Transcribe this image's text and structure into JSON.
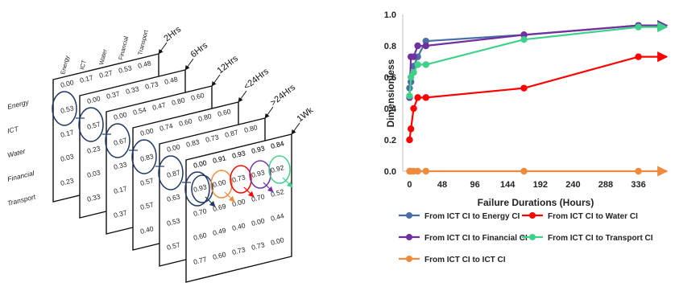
{
  "chart_data": [
    {
      "type": "table",
      "row_labels": [
        "Energy",
        "ICT",
        "Water",
        "Financial",
        "Transport"
      ],
      "column_labels": [
        "Energy",
        "ICT",
        "Water",
        "Financial",
        "Transport"
      ],
      "layers": [
        {
          "label": "2Hrs",
          "first_row": [
            "0.00",
            "0.17",
            "0.27",
            "0.53",
            "0.48"
          ]
        },
        {
          "label": "6Hrs",
          "first_row": [
            "0.00",
            "0.37",
            "0.33",
            "0.73",
            "0.48"
          ]
        },
        {
          "label": "12Hrs",
          "first_row": [
            "0.00",
            "0.54",
            "0.47",
            "0.80",
            "0.60"
          ]
        },
        {
          "label": "<24Hrs",
          "first_row": [
            "0.00",
            "0.74",
            "0.60",
            "0.80",
            "0.60"
          ]
        },
        {
          "label": ">24Hrs",
          "first_row": [
            "0.00",
            "0.83",
            "0.73",
            "0.87",
            "0.80"
          ]
        },
        {
          "label": "1Wk",
          "first_row": [
            "0.00",
            "0.91",
            "0.93",
            "0.93",
            "0.84"
          ]
        }
      ],
      "visible_columns": [
        [
          "0.53",
          "0.17",
          "0.03",
          "0.23"
        ],
        [
          "0.57",
          "0.23",
          "0.03",
          "0.33"
        ],
        [
          "0.67",
          "0.33",
          "0.17",
          "0.37"
        ],
        [
          "0.83",
          "0.57",
          "0.57",
          "0.40"
        ],
        [
          "0.87",
          "0.63",
          "0.53",
          "0.57"
        ]
      ],
      "front_grid": [
        [
          "0.00",
          "0.91",
          "0.93",
          "0.93",
          "0.84"
        ],
        [
          "0.93",
          "0.00",
          "0.73",
          "0.93",
          "0.92"
        ],
        [
          "0.70",
          "0.69",
          "0.00",
          "0.70",
          "0.52"
        ],
        [
          "0.60",
          "0.49",
          "0.40",
          "0.00",
          "0.44"
        ],
        [
          "0.77",
          "0.60",
          "0.73",
          "0.73",
          "0.00"
        ]
      ]
    },
    {
      "type": "line",
      "xlabel": "Failure Durations (Hours)",
      "ylabel": "Dimensionless",
      "x": [
        0,
        2,
        6,
        12,
        24,
        168,
        336
      ],
      "xticks": [
        0,
        48,
        96,
        144,
        192,
        240,
        288,
        336
      ],
      "xlim": [
        -10,
        372
      ],
      "ylim": [
        0,
        1.0
      ],
      "yticks": [
        "0.0",
        "0.2",
        "0.4",
        "0.6",
        "0.8",
        "1.0"
      ],
      "grid": false,
      "legend_position": "bottom",
      "series": [
        {
          "name": "From ICT CI to Energy CI",
          "color": "#4A6FA5",
          "values": [
            0.53,
            0.57,
            0.67,
            0.73,
            0.83,
            0.87,
            0.93
          ]
        },
        {
          "name": "From ICT CI to Water CI",
          "color": "#FF0000",
          "values": [
            0.2,
            0.27,
            0.4,
            0.47,
            0.47,
            0.53,
            0.73
          ]
        },
        {
          "name": "From ICT CI to Financial CI",
          "color": "#7030A0",
          "values": [
            0.47,
            0.73,
            0.73,
            0.8,
            0.8,
            0.87,
            0.93
          ]
        },
        {
          "name": "From ICT CI to Transport CI",
          "color": "#3FD08A",
          "values": [
            0.48,
            0.6,
            0.63,
            0.68,
            0.68,
            0.84,
            0.92
          ]
        },
        {
          "name": "From ICT CI to ICT CI",
          "color": "#F08A3C",
          "values": [
            0.0,
            0.0,
            0.0,
            0.0,
            0.0,
            0.0,
            0.0
          ]
        }
      ]
    }
  ]
}
